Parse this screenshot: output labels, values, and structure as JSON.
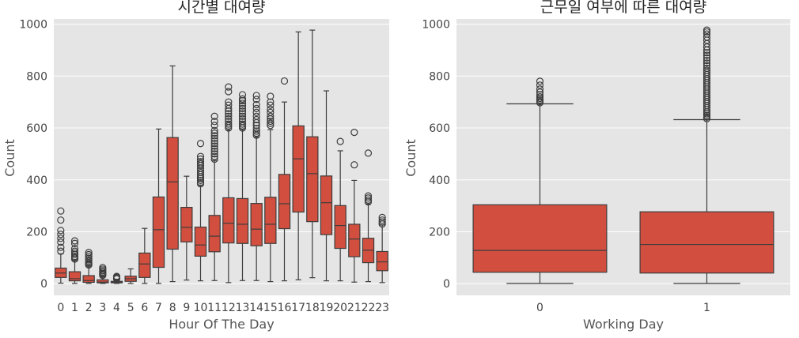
{
  "chart_data": [
    {
      "type": "box",
      "title": "시간별 대여량",
      "xlabel": "Hour Of The Day",
      "ylabel": "Count",
      "ylim": [
        -45,
        1020
      ],
      "yticks": [
        0,
        200,
        400,
        600,
        800,
        1000
      ],
      "grid": true,
      "box_color": "#d24f3f",
      "categories": [
        "0",
        "1",
        "2",
        "3",
        "4",
        "5",
        "6",
        "7",
        "8",
        "9",
        "10",
        "11",
        "12",
        "13",
        "14",
        "15",
        "16",
        "17",
        "18",
        "19",
        "20",
        "21",
        "22",
        "23"
      ],
      "boxes": [
        {
          "whislo": 2,
          "q1": 24,
          "med": 41,
          "q3": 60,
          "whishi": 115,
          "fliers": [
            125,
            140,
            160,
            175,
            190,
            205,
            245,
            280
          ]
        },
        {
          "whislo": 1,
          "q1": 11,
          "med": 19,
          "q3": 46,
          "whishi": 90,
          "fliers": [
            95,
            100,
            105,
            112,
            118,
            125,
            135,
            155,
            165
          ]
        },
        {
          "whislo": 1,
          "q1": 5,
          "med": 12,
          "q3": 31,
          "whishi": 70,
          "fliers": [
            72,
            76,
            80,
            86,
            92,
            98,
            105,
            112,
            120
          ]
        },
        {
          "whislo": 1,
          "q1": 3,
          "med": 6,
          "q3": 15,
          "whishi": 30,
          "fliers": [
            32,
            36,
            40,
            45,
            50,
            56,
            62
          ]
        },
        {
          "whislo": 1,
          "q1": 3,
          "med": 6,
          "q3": 9,
          "whishi": 17,
          "fliers": [
            19,
            22,
            25,
            28
          ]
        },
        {
          "whislo": 1,
          "q1": 9,
          "med": 19,
          "q3": 29,
          "whishi": 57,
          "fliers": []
        },
        {
          "whislo": 1,
          "q1": 24,
          "med": 76,
          "q3": 118,
          "whishi": 213,
          "fliers": []
        },
        {
          "whislo": 1,
          "q1": 63,
          "med": 208,
          "q3": 334,
          "whishi": 596,
          "fliers": []
        },
        {
          "whislo": 8,
          "q1": 133,
          "med": 392,
          "q3": 563,
          "whishi": 839,
          "fliers": []
        },
        {
          "whislo": 14,
          "q1": 161,
          "med": 217,
          "q3": 294,
          "whishi": 414,
          "fliers": []
        },
        {
          "whislo": 11,
          "q1": 106,
          "med": 149,
          "q3": 218,
          "whishi": 380,
          "fliers": [
            385,
            390,
            398,
            405,
            412,
            420,
            428,
            436,
            445,
            455,
            462,
            470,
            480,
            490,
            540
          ]
        },
        {
          "whislo": 12,
          "q1": 123,
          "med": 183,
          "q3": 263,
          "whishi": 475,
          "fliers": [
            480,
            490,
            500,
            510,
            520,
            530,
            540,
            550,
            560,
            570,
            580,
            590,
            610,
            625,
            645
          ]
        },
        {
          "whislo": 4,
          "q1": 157,
          "med": 233,
          "q3": 331,
          "whishi": 592,
          "fliers": [
            600,
            608,
            615,
            625,
            635,
            645,
            655,
            665,
            675,
            688,
            700,
            740,
            758
          ]
        },
        {
          "whislo": 12,
          "q1": 155,
          "med": 229,
          "q3": 328,
          "whishi": 594,
          "fliers": [
            600,
            608,
            615,
            625,
            635,
            645,
            655,
            665,
            675,
            685,
            695,
            705,
            712,
            728
          ]
        },
        {
          "whislo": 12,
          "q1": 146,
          "med": 210,
          "q3": 309,
          "whishi": 565,
          "fliers": [
            572,
            580,
            588,
            598,
            610,
            620,
            632,
            645,
            660,
            675,
            690,
            710,
            725
          ]
        },
        {
          "whislo": 8,
          "q1": 155,
          "med": 229,
          "q3": 333,
          "whishi": 593,
          "fliers": [
            610,
            618,
            626,
            635,
            645,
            660,
            672,
            688,
            700,
            722
          ]
        },
        {
          "whislo": 11,
          "q1": 212,
          "med": 308,
          "q3": 421,
          "whishi": 700,
          "fliers": [
            781
          ]
        },
        {
          "whislo": 15,
          "q1": 276,
          "med": 481,
          "q3": 608,
          "whishi": 970,
          "fliers": []
        },
        {
          "whislo": 23,
          "q1": 239,
          "med": 424,
          "q3": 566,
          "whishi": 977,
          "fliers": []
        },
        {
          "whislo": 11,
          "q1": 189,
          "med": 312,
          "q3": 415,
          "whishi": 743,
          "fliers": []
        },
        {
          "whislo": 11,
          "q1": 136,
          "med": 224,
          "q3": 301,
          "whishi": 512,
          "fliers": [
            548
          ]
        },
        {
          "whislo": 6,
          "q1": 104,
          "med": 172,
          "q3": 229,
          "whishi": 398,
          "fliers": [
            458,
            583
          ]
        },
        {
          "whislo": 8,
          "q1": 81,
          "med": 129,
          "q3": 175,
          "whishi": 307,
          "fliers": [
            315,
            322,
            330,
            338,
            503
          ]
        },
        {
          "whislo": 4,
          "q1": 50,
          "med": 84,
          "q3": 124,
          "whishi": 226,
          "fliers": [
            230,
            238,
            245,
            255
          ]
        }
      ]
    },
    {
      "type": "box",
      "title": "근무일 여부에 따른 대여량",
      "xlabel": "Working Day",
      "ylabel": "Count",
      "ylim": [
        -45,
        1020
      ],
      "yticks": [
        0,
        200,
        400,
        600,
        800,
        1000
      ],
      "grid": true,
      "box_color": "#d24f3f",
      "categories": [
        "0",
        "1"
      ],
      "boxes": [
        {
          "whislo": 1,
          "q1": 44,
          "med": 128,
          "q3": 304,
          "whishi": 693,
          "fliers": [
            697,
            702,
            708,
            714,
            720,
            728,
            738,
            750,
            765,
            780
          ]
        },
        {
          "whislo": 1,
          "q1": 41,
          "med": 151,
          "q3": 277,
          "whishi": 632,
          "fliers": [
            636,
            642,
            648,
            655,
            662,
            670,
            678,
            686,
            694,
            702,
            710,
            718,
            726,
            734,
            742,
            750,
            758,
            766,
            774,
            782,
            790,
            798,
            806,
            814,
            822,
            830,
            840,
            850,
            860,
            870,
            880,
            890,
            900,
            912,
            925,
            938,
            950,
            962,
            970,
            977
          ]
        }
      ]
    }
  ]
}
